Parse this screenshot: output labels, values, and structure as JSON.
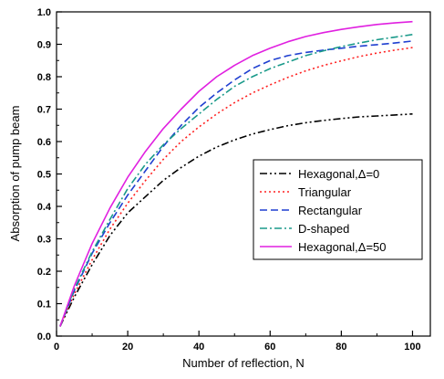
{
  "chart_data": {
    "type": "line",
    "title": "",
    "xlabel": "Number of reflection, N",
    "ylabel": "Absorption of pump beam",
    "xlim": [
      0,
      105
    ],
    "ylim": [
      0.0,
      1.0
    ],
    "xticks": [
      0,
      20,
      40,
      60,
      80,
      100
    ],
    "yticks": [
      0.0,
      0.1,
      0.2,
      0.3,
      0.4,
      0.5,
      0.6,
      0.7,
      0.8,
      0.9,
      1.0
    ],
    "xtick_labels": [
      "0",
      "20",
      "40",
      "60",
      "80",
      "100"
    ],
    "ytick_labels": [
      "0.0",
      "0.1",
      "0.2",
      "0.3",
      "0.4",
      "0.5",
      "0.6",
      "0.7",
      "0.8",
      "0.9",
      "1.0"
    ],
    "grid": false,
    "legend_position": "center-right",
    "x": [
      1,
      5,
      10,
      15,
      20,
      25,
      30,
      35,
      40,
      45,
      50,
      55,
      60,
      65,
      70,
      75,
      80,
      85,
      90,
      95,
      100
    ],
    "series": [
      {
        "name": "Hexagonal,Δ=0",
        "color": "#000000",
        "dash": "dashdotdot",
        "values": [
          0.03,
          0.12,
          0.22,
          0.31,
          0.38,
          0.43,
          0.48,
          0.52,
          0.555,
          0.583,
          0.605,
          0.623,
          0.637,
          0.649,
          0.658,
          0.665,
          0.671,
          0.676,
          0.679,
          0.682,
          0.685
        ]
      },
      {
        "name": "Triangular",
        "color": "#ff2020",
        "dash": "dot",
        "values": [
          0.03,
          0.13,
          0.235,
          0.33,
          0.41,
          0.48,
          0.545,
          0.6,
          0.645,
          0.685,
          0.72,
          0.75,
          0.775,
          0.798,
          0.818,
          0.835,
          0.849,
          0.862,
          0.873,
          0.882,
          0.89
        ]
      },
      {
        "name": "Rectangular",
        "color": "#1f3fd0",
        "dash": "dash",
        "values": [
          0.03,
          0.14,
          0.255,
          0.35,
          0.435,
          0.51,
          0.585,
          0.65,
          0.705,
          0.75,
          0.79,
          0.825,
          0.85,
          0.865,
          0.875,
          0.882,
          0.888,
          0.894,
          0.899,
          0.904,
          0.91
        ]
      },
      {
        "name": "D-shaped",
        "color": "#1a9a8a",
        "dash": "dashdot",
        "values": [
          0.03,
          0.145,
          0.26,
          0.36,
          0.455,
          0.53,
          0.59,
          0.64,
          0.685,
          0.73,
          0.77,
          0.8,
          0.825,
          0.845,
          0.865,
          0.88,
          0.893,
          0.904,
          0.914,
          0.922,
          0.93
        ]
      },
      {
        "name": "Hexagonal,Δ=50",
        "color": "#e020e0",
        "dash": "solid",
        "values": [
          0.03,
          0.155,
          0.285,
          0.395,
          0.49,
          0.57,
          0.64,
          0.7,
          0.755,
          0.8,
          0.835,
          0.865,
          0.888,
          0.908,
          0.924,
          0.936,
          0.946,
          0.954,
          0.961,
          0.966,
          0.97
        ]
      }
    ]
  }
}
